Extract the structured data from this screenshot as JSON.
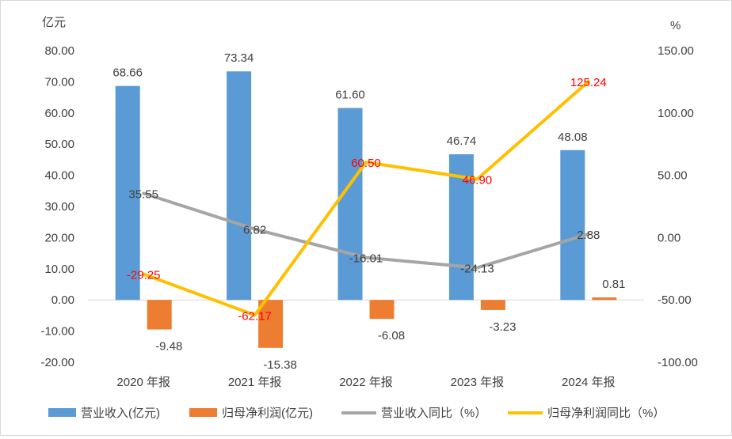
{
  "chart_data": {
    "type": "bar+line",
    "categories": [
      "2020 年报",
      "2021 年报",
      "2022 年报",
      "2023 年报",
      "2024 年报"
    ],
    "left_axis": {
      "unit": "亿元",
      "range": [
        -20,
        80
      ],
      "ticks": [
        "-20.00",
        "-10.00",
        "0.00",
        "10.00",
        "20.00",
        "30.00",
        "40.00",
        "50.00",
        "60.00",
        "70.00",
        "80.00"
      ]
    },
    "right_axis": {
      "unit": "%",
      "range": [
        -100,
        150
      ],
      "ticks": [
        "-100.00",
        "-50.00",
        "0.00",
        "50.00",
        "100.00",
        "150.00"
      ]
    },
    "series": [
      {
        "name": "营业收入(亿元)",
        "kind": "bar",
        "axis": "left",
        "color": "#5b9bd5",
        "values": [
          68.66,
          73.34,
          61.6,
          46.74,
          48.08
        ],
        "labels": [
          "68.66",
          "73.34",
          "61.60",
          "46.74",
          "48.08"
        ],
        "label_color": "#404040"
      },
      {
        "name": "归母净利润(亿元)",
        "kind": "bar",
        "axis": "left",
        "color": "#ed7d31",
        "values": [
          -9.48,
          -15.38,
          -6.08,
          -3.23,
          0.81
        ],
        "labels": [
          "-9.48",
          "-15.38",
          "-6.08",
          "-3.23",
          "0.81"
        ],
        "label_color": "#404040"
      },
      {
        "name": "营业收入同比（%）",
        "kind": "line",
        "axis": "right",
        "color": "#a5a5a5",
        "values": [
          35.55,
          6.82,
          -16.01,
          -24.13,
          2.88
        ],
        "labels": [
          "35.55",
          "6.82",
          "-16.01",
          "-24.13",
          "2.88"
        ],
        "label_color": "#404040"
      },
      {
        "name": "归母净利润同比（%）",
        "kind": "line",
        "axis": "right",
        "color": "#ffc000",
        "values": [
          -29.25,
          -62.17,
          60.5,
          46.9,
          125.24
        ],
        "labels": [
          "-29.25",
          "-62.17",
          "60.50",
          "46.90",
          "125.24"
        ],
        "label_color": "#ff0000"
      }
    ],
    "grid": false,
    "legend": "bottom"
  }
}
